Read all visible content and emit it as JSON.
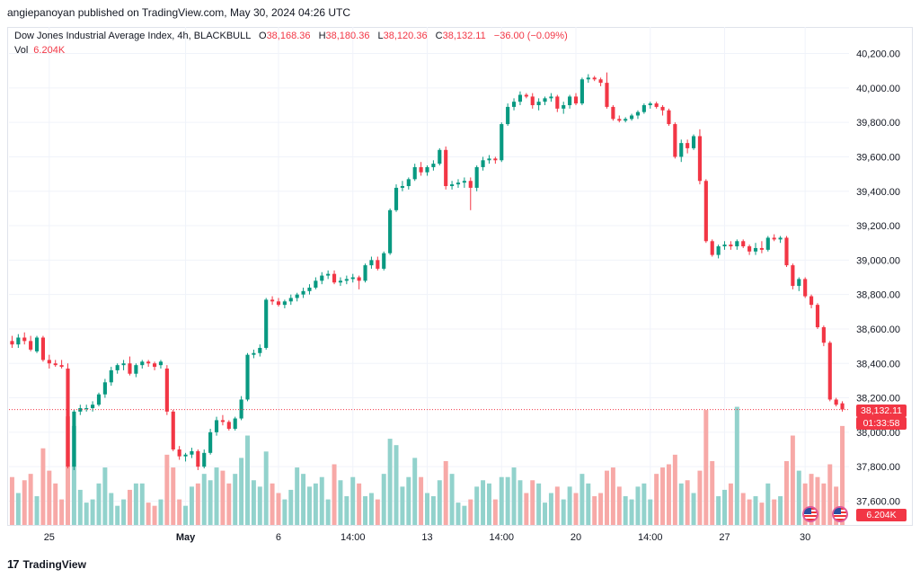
{
  "header": {
    "published": "angiepanoyan published on TradingView.com, May 30, 2024 04:26 UTC"
  },
  "legend": {
    "symbol": "Dow Jones Industrial Average Index, 4h, BLACKBULL",
    "o_label": "O",
    "o_value": "38,168.36",
    "h_label": "H",
    "h_value": "38,180.36",
    "l_label": "L",
    "l_value": "38,120.36",
    "c_label": "C",
    "c_value": "38,132.11",
    "change": "−36.00 (−0.09%)",
    "vol_label": "Vol",
    "vol_value": "6.204K"
  },
  "badges": {
    "price": "38,132.11",
    "countdown": "01:33:58",
    "volume": "6.204K"
  },
  "footer": {
    "brand": "TradingView"
  },
  "colors": {
    "up": "#089981",
    "down": "#f23645",
    "vol_up": "#92d2cc",
    "vol_down": "#f7a9a7",
    "grid": "#f0f3fa"
  },
  "chart_data": {
    "type": "candlestick",
    "title": "Dow Jones Industrial Average Index, 4h, BLACKBULL",
    "ylim": [
      37500,
      40300
    ],
    "y_ticks": [
      "40,200.00",
      "40,000.00",
      "39,800.00",
      "39,600.00",
      "39,400.00",
      "39,200.00",
      "39,000.00",
      "38,800.00",
      "38,600.00",
      "38,400.00",
      "38,200.00",
      "38,000.00",
      "37,800.00",
      "37,600.00"
    ],
    "x_ticks": [
      {
        "label": "25",
        "index": 6
      },
      {
        "label": "May",
        "index": 28
      },
      {
        "label": "6",
        "index": 43
      },
      {
        "label": "14:00",
        "index": 55
      },
      {
        "label": "13",
        "index": 67
      },
      {
        "label": "14:00",
        "index": 79
      },
      {
        "label": "20",
        "index": 91
      },
      {
        "label": "14:00",
        "index": 103
      },
      {
        "label": "27",
        "index": 115
      },
      {
        "label": "30",
        "index": 128
      }
    ],
    "candles": [
      [
        38530,
        38560,
        38490,
        38510,
        3.0
      ],
      [
        38510,
        38570,
        38490,
        38550,
        2.0
      ],
      [
        38550,
        38580,
        38510,
        38530,
        2.8
      ],
      [
        38530,
        38560,
        38470,
        38480,
        3.2
      ],
      [
        38470,
        38560,
        38460,
        38550,
        1.8
      ],
      [
        38550,
        38560,
        38410,
        38420,
        4.8
      ],
      [
        38420,
        38450,
        38370,
        38400,
        3.4
      ],
      [
        38400,
        38420,
        38380,
        38390,
        2.6
      ],
      [
        38390,
        38420,
        38370,
        38380,
        1.6
      ],
      [
        38370,
        38400,
        37790,
        37800,
        6.8
      ],
      [
        37800,
        38130,
        37780,
        38120,
        6.2
      ],
      [
        38120,
        38160,
        38100,
        38140,
        2.2
      ],
      [
        38140,
        38160,
        38120,
        38140,
        1.4
      ],
      [
        38140,
        38180,
        38120,
        38160,
        1.6
      ],
      [
        38160,
        38230,
        38150,
        38220,
        2.6
      ],
      [
        38220,
        38310,
        38200,
        38290,
        3.6
      ],
      [
        38290,
        38380,
        38270,
        38360,
        2.0
      ],
      [
        38360,
        38400,
        38340,
        38390,
        1.2
      ],
      [
        38390,
        38420,
        38360,
        38400,
        1.6
      ],
      [
        38400,
        38440,
        38330,
        38340,
        2.2
      ],
      [
        38340,
        38400,
        38320,
        38390,
        2.6
      ],
      [
        38390,
        38420,
        38370,
        38410,
        2.6
      ],
      [
        38410,
        38420,
        38380,
        38400,
        1.4
      ],
      [
        38400,
        38410,
        38360,
        38380,
        1.2
      ],
      [
        38390,
        38420,
        38370,
        38410,
        1.6
      ],
      [
        38370,
        38390,
        38100,
        38120,
        4.4
      ],
      [
        38120,
        38130,
        37890,
        37900,
        3.6
      ],
      [
        37900,
        37920,
        37840,
        37860,
        1.6
      ],
      [
        37860,
        37880,
        37830,
        37870,
        1.2
      ],
      [
        37870,
        37910,
        37850,
        37890,
        2.4
      ],
      [
        37890,
        37900,
        37780,
        37800,
        2.6
      ],
      [
        37800,
        37900,
        37790,
        37880,
        3.2
      ],
      [
        37880,
        38020,
        37870,
        38000,
        2.8
      ],
      [
        38000,
        38090,
        37980,
        38070,
        3.6
      ],
      [
        38070,
        38100,
        38040,
        38060,
        3.4
      ],
      [
        38060,
        38070,
        38010,
        38020,
        2.6
      ],
      [
        38020,
        38090,
        38010,
        38080,
        3.2
      ],
      [
        38080,
        38210,
        38070,
        38190,
        4.2
      ],
      [
        38190,
        38460,
        38180,
        38450,
        5.6
      ],
      [
        38450,
        38480,
        38430,
        38460,
        2.8
      ],
      [
        38460,
        38510,
        38440,
        38490,
        2.4
      ],
      [
        38490,
        38780,
        38480,
        38770,
        4.6
      ],
      [
        38770,
        38790,
        38740,
        38760,
        2.6
      ],
      [
        38760,
        38780,
        38730,
        38740,
        2.0
      ],
      [
        38740,
        38770,
        38720,
        38760,
        1.6
      ],
      [
        38760,
        38800,
        38740,
        38780,
        2.2
      ],
      [
        38780,
        38810,
        38760,
        38800,
        3.6
      ],
      [
        38800,
        38840,
        38780,
        38820,
        3.2
      ],
      [
        38820,
        38860,
        38800,
        38840,
        2.4
      ],
      [
        38840,
        38900,
        38830,
        38880,
        2.6
      ],
      [
        38880,
        38930,
        38860,
        38910,
        3.0
      ],
      [
        38910,
        38940,
        38890,
        38920,
        1.6
      ],
      [
        38920,
        38940,
        38860,
        38870,
        3.8
      ],
      [
        38870,
        38900,
        38850,
        38880,
        2.8
      ],
      [
        38880,
        38910,
        38860,
        38890,
        1.8
      ],
      [
        38890,
        38920,
        38870,
        38900,
        3.0
      ],
      [
        38900,
        38910,
        38830,
        38880,
        2.6
      ],
      [
        38880,
        38980,
        38870,
        38970,
        1.8
      ],
      [
        38970,
        39020,
        38950,
        39000,
        2.0
      ],
      [
        39000,
        39020,
        38940,
        38950,
        1.6
      ],
      [
        38950,
        39050,
        38940,
        39040,
        3.2
      ],
      [
        39040,
        39300,
        39030,
        39290,
        5.4
      ],
      [
        39290,
        39440,
        39280,
        39420,
        5.0
      ],
      [
        39420,
        39460,
        39400,
        39430,
        2.4
      ],
      [
        39430,
        39480,
        39410,
        39470,
        3.0
      ],
      [
        39470,
        39560,
        39460,
        39540,
        4.2
      ],
      [
        39540,
        39570,
        39490,
        39510,
        3.0
      ],
      [
        39510,
        39550,
        39490,
        39540,
        2.0
      ],
      [
        39540,
        39580,
        39520,
        39560,
        1.8
      ],
      [
        39560,
        39650,
        39550,
        39640,
        2.8
      ],
      [
        39640,
        39660,
        39410,
        39430,
        4.0
      ],
      [
        39430,
        39460,
        39410,
        39440,
        3.2
      ],
      [
        39440,
        39470,
        39420,
        39450,
        1.4
      ],
      [
        39450,
        39480,
        39420,
        39460,
        1.2
      ],
      [
        39460,
        39480,
        39290,
        39420,
        1.6
      ],
      [
        39420,
        39550,
        39400,
        39540,
        2.4
      ],
      [
        39540,
        39600,
        39520,
        39580,
        2.8
      ],
      [
        39580,
        39610,
        39560,
        39590,
        2.6
      ],
      [
        39590,
        39600,
        39560,
        39580,
        1.6
      ],
      [
        39580,
        39800,
        39570,
        39790,
        3.0
      ],
      [
        39790,
        39910,
        39780,
        39890,
        3.0
      ],
      [
        39890,
        39940,
        39870,
        39920,
        3.6
      ],
      [
        39920,
        39980,
        39900,
        39960,
        2.8
      ],
      [
        39960,
        39970,
        39940,
        39950,
        2.0
      ],
      [
        39950,
        39970,
        39880,
        39900,
        2.8
      ],
      [
        39900,
        39940,
        39870,
        39920,
        2.6
      ],
      [
        39920,
        39950,
        39900,
        39940,
        1.4
      ],
      [
        39940,
        39970,
        39920,
        39950,
        2.0
      ],
      [
        39950,
        39960,
        39860,
        39880,
        2.4
      ],
      [
        39880,
        39920,
        39850,
        39900,
        1.6
      ],
      [
        39900,
        39960,
        39880,
        39950,
        2.4
      ],
      [
        39950,
        39970,
        39900,
        39910,
        2.0
      ],
      [
        39910,
        40060,
        39900,
        40050,
        3.2
      ],
      [
        40050,
        40080,
        40030,
        40060,
        2.6
      ],
      [
        40060,
        40070,
        40040,
        40050,
        1.8
      ],
      [
        40050,
        40060,
        40010,
        40030,
        2.0
      ],
      [
        40030,
        40090,
        39880,
        39890,
        3.4
      ],
      [
        39890,
        39900,
        39810,
        39820,
        3.6
      ],
      [
        39820,
        39840,
        39800,
        39810,
        2.4
      ],
      [
        39810,
        39830,
        39800,
        39820,
        1.8
      ],
      [
        39820,
        39850,
        39810,
        39840,
        1.6
      ],
      [
        39840,
        39870,
        39820,
        39860,
        2.4
      ],
      [
        39860,
        39910,
        39850,
        39900,
        2.6
      ],
      [
        39900,
        39920,
        39880,
        39910,
        1.6
      ],
      [
        39910,
        39920,
        39880,
        39890,
        3.2
      ],
      [
        39890,
        39900,
        39840,
        39870,
        3.6
      ],
      [
        39870,
        39880,
        39780,
        39790,
        3.8
      ],
      [
        39790,
        39800,
        39590,
        39600,
        4.4
      ],
      [
        39600,
        39700,
        39570,
        39680,
        2.6
      ],
      [
        39680,
        39700,
        39620,
        39650,
        2.8
      ],
      [
        39650,
        39730,
        39640,
        39720,
        2.0
      ],
      [
        39720,
        39760,
        39440,
        39460,
        3.4
      ],
      [
        39460,
        39470,
        39100,
        39110,
        7.2
      ],
      [
        39110,
        39120,
        39020,
        39030,
        4.0
      ],
      [
        39030,
        39090,
        39010,
        39080,
        1.8
      ],
      [
        39080,
        39110,
        39060,
        39090,
        2.2
      ],
      [
        39090,
        39110,
        39060,
        39080,
        2.6
      ],
      [
        39080,
        39120,
        39060,
        39110,
        7.4
      ],
      [
        39110,
        39120,
        39070,
        39080,
        2.0
      ],
      [
        39080,
        39090,
        39030,
        39050,
        1.6
      ],
      [
        39050,
        39100,
        39030,
        39070,
        1.8
      ],
      [
        39070,
        39110,
        39040,
        39060,
        1.4
      ],
      [
        39060,
        39140,
        39050,
        39130,
        2.6
      ],
      [
        39130,
        39150,
        39110,
        39120,
        1.6
      ],
      [
        39120,
        39140,
        39100,
        39130,
        1.8
      ],
      [
        39130,
        39140,
        38960,
        38970,
        4.0
      ],
      [
        38970,
        38980,
        38830,
        38850,
        5.6
      ],
      [
        38850,
        38900,
        38820,
        38890,
        3.4
      ],
      [
        38890,
        38900,
        38780,
        38790,
        2.6
      ],
      [
        38790,
        38800,
        38720,
        38740,
        3.2
      ],
      [
        38740,
        38750,
        38600,
        38610,
        3.0
      ],
      [
        38610,
        38620,
        38500,
        38520,
        2.6
      ],
      [
        38520,
        38530,
        38180,
        38190,
        3.8
      ],
      [
        38190,
        38200,
        38150,
        38160,
        2.4
      ],
      [
        38168,
        38180,
        38120,
        38132,
        6.2
      ]
    ]
  }
}
